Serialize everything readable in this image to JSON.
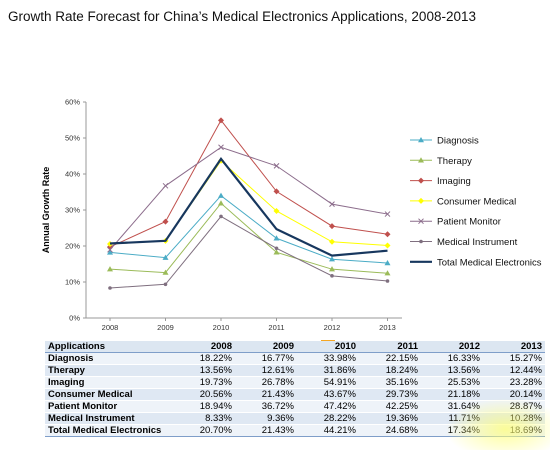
{
  "title": "Growth Rate Forecast for China’s Medical Electronics Applications, 2008-2013",
  "chart_data": {
    "type": "line",
    "title": "Growth Rate Forecast for China’s Medical Electronics Applications, 2008-2013",
    "xlabel": "",
    "ylabel": "Annual Growth Rate",
    "categories": [
      "2008",
      "2009",
      "2010",
      "2011",
      "2012",
      "2013"
    ],
    "ylim": [
      0,
      60
    ],
    "yticks": [
      0,
      10,
      20,
      30,
      40,
      50,
      60
    ],
    "ytick_labels": [
      "0%",
      "10%",
      "20%",
      "30%",
      "40%",
      "50%",
      "60%"
    ],
    "grid": false,
    "legend": "right",
    "series": [
      {
        "name": "Diagnosis",
        "color": "#4bacc6",
        "marker": "triangle",
        "values": [
          18.22,
          16.77,
          33.98,
          22.15,
          16.33,
          15.27
        ]
      },
      {
        "name": "Therapy",
        "color": "#9bbb59",
        "marker": "triangle",
        "values": [
          13.56,
          12.61,
          31.86,
          18.24,
          13.56,
          12.44
        ]
      },
      {
        "name": "Imaging",
        "color": "#c0504d",
        "marker": "diamond",
        "values": [
          19.73,
          26.78,
          54.91,
          35.16,
          25.53,
          23.28
        ]
      },
      {
        "name": "Consumer Medical",
        "color": "#ffff00",
        "marker": "diamond",
        "values": [
          20.56,
          21.43,
          43.67,
          29.73,
          21.18,
          20.14
        ]
      },
      {
        "name": "Patient Monitor",
        "color": "#8c6d8c",
        "marker": "star",
        "values": [
          18.94,
          36.72,
          47.42,
          42.25,
          31.64,
          28.87
        ]
      },
      {
        "name": "Medical Instrument",
        "color": "#7f6f7f",
        "marker": "circle",
        "values": [
          8.33,
          9.36,
          28.22,
          19.36,
          11.71,
          10.28
        ]
      },
      {
        "name": "Total Medical Electronics",
        "color": "#17375e",
        "marker": "none",
        "values": [
          20.7,
          21.43,
          44.21,
          24.68,
          17.34,
          18.69
        ]
      }
    ]
  },
  "table": {
    "header_label": "Applications",
    "years": [
      "2008",
      "2009",
      "2010",
      "2011",
      "2012",
      "2013"
    ],
    "rows": [
      {
        "name": "Diagnosis",
        "values": [
          "18.22%",
          "16.77%",
          "33.98%",
          "22.15%",
          "16.33%",
          "15.27%"
        ]
      },
      {
        "name": "Therapy",
        "values": [
          "13.56%",
          "12.61%",
          "31.86%",
          "18.24%",
          "13.56%",
          "12.44%"
        ]
      },
      {
        "name": "Imaging",
        "values": [
          "19.73%",
          "26.78%",
          "54.91%",
          "35.16%",
          "25.53%",
          "23.28%"
        ]
      },
      {
        "name": "Consumer Medical",
        "values": [
          "20.56%",
          "21.43%",
          "43.67%",
          "29.73%",
          "21.18%",
          "20.14%"
        ]
      },
      {
        "name": "Patient Monitor",
        "values": [
          "18.94%",
          "36.72%",
          "47.42%",
          "42.25%",
          "31.64%",
          "28.87%"
        ]
      },
      {
        "name": "Medical Instrument",
        "values": [
          "8.33%",
          "9.36%",
          "28.22%",
          "19.36%",
          "11.71%",
          "10.28%"
        ]
      },
      {
        "name": "Total Medical Electronics",
        "values": [
          "20.70%",
          "21.43%",
          "44.21%",
          "24.68%",
          "17.34%",
          "18.69%"
        ]
      }
    ]
  }
}
